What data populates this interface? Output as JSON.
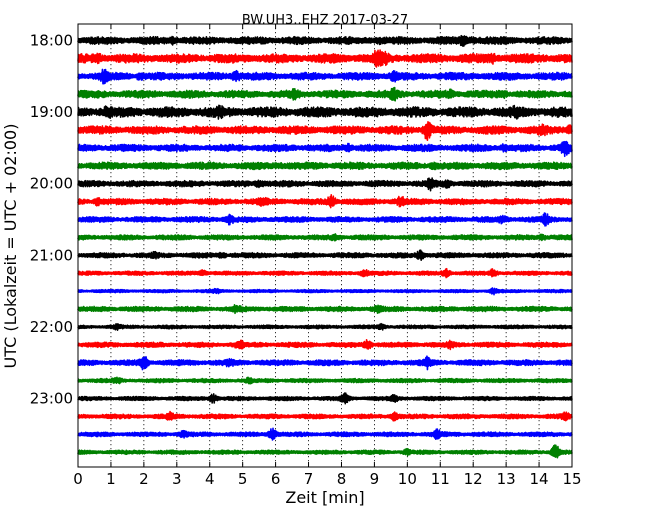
{
  "chart_data": {
    "type": "line",
    "title": "BW.UH3..EHZ 2017-03-27",
    "xlabel": "Zeit  [min]",
    "ylabel": "UTC (Lokalzeit = UTC + 02:00)",
    "xlim": [
      0,
      15
    ],
    "x_ticks": [
      "0",
      "1",
      "2",
      "3",
      "4",
      "5",
      "6",
      "7",
      "8",
      "9",
      "10",
      "11",
      "12",
      "13",
      "14",
      "15"
    ],
    "y_ticks": [
      "18:00",
      "19:00",
      "20:00",
      "21:00",
      "22:00",
      "23:00"
    ],
    "grid": "vertical dotted lines at each minute",
    "colors": [
      "#000000",
      "#ff0000",
      "#0000ff",
      "#008000"
    ],
    "traces": [
      {
        "hour": "18:00",
        "minute": 0,
        "color": "#000000",
        "amplitude": 0.75,
        "events": [
          [
            2.9,
            0.4
          ],
          [
            9.1,
            0.3
          ],
          [
            11.7,
            0.5
          ],
          [
            12.0,
            0.4
          ]
        ]
      },
      {
        "hour": "18:00",
        "minute": 15,
        "color": "#ff0000",
        "amplitude": 0.9,
        "events": [
          [
            9.1,
            1.3
          ],
          [
            9.3,
            0.6
          ],
          [
            0.6,
            0.4
          ],
          [
            12.6,
            0.4
          ]
        ]
      },
      {
        "hour": "18:00",
        "minute": 30,
        "color": "#0000ff",
        "amplitude": 0.75,
        "events": [
          [
            0.8,
            1.0
          ],
          [
            4.8,
            0.8
          ],
          [
            9.6,
            0.5
          ],
          [
            1.9,
            0.4
          ]
        ]
      },
      {
        "hour": "18:00",
        "minute": 45,
        "color": "#008000",
        "amplitude": 0.75,
        "events": [
          [
            6.6,
            0.6
          ],
          [
            9.6,
            0.7
          ],
          [
            11.3,
            0.4
          ],
          [
            12.9,
            0.4
          ]
        ]
      },
      {
        "hour": "19:00",
        "minute": 0,
        "color": "#000000",
        "amplitude": 1.0,
        "events": [
          [
            0.9,
            0.5
          ],
          [
            4.3,
            0.4
          ],
          [
            13.3,
            0.4
          ]
        ]
      },
      {
        "hour": "19:00",
        "minute": 15,
        "color": "#ff0000",
        "amplitude": 0.8,
        "events": [
          [
            10.6,
            1.4
          ],
          [
            14.1,
            0.5
          ],
          [
            14.9,
            0.6
          ]
        ]
      },
      {
        "hour": "19:00",
        "minute": 30,
        "color": "#0000ff",
        "amplitude": 0.7,
        "events": [
          [
            8.2,
            0.5
          ],
          [
            14.8,
            1.2
          ],
          [
            12.9,
            0.3
          ]
        ]
      },
      {
        "hour": "19:00",
        "minute": 45,
        "color": "#008000",
        "amplitude": 0.7,
        "events": [
          [
            6.1,
            0.3
          ],
          [
            10.8,
            0.3
          ]
        ]
      },
      {
        "hour": "20:00",
        "minute": 0,
        "color": "#000000",
        "amplitude": 0.6,
        "events": [
          [
            5.5,
            0.6
          ],
          [
            10.7,
            0.9
          ],
          [
            11.2,
            0.4
          ]
        ]
      },
      {
        "hour": "20:00",
        "minute": 15,
        "color": "#ff0000",
        "amplitude": 0.6,
        "events": [
          [
            7.7,
            1.0
          ],
          [
            9.8,
            0.6
          ],
          [
            0.6,
            0.5
          ],
          [
            5.6,
            0.4
          ]
        ]
      },
      {
        "hour": "20:00",
        "minute": 30,
        "color": "#0000ff",
        "amplitude": 0.55,
        "events": [
          [
            4.6,
            0.6
          ],
          [
            14.2,
            0.8
          ],
          [
            12.9,
            0.4
          ]
        ]
      },
      {
        "hour": "20:00",
        "minute": 45,
        "color": "#008000",
        "amplitude": 0.5,
        "events": [
          [
            7.8,
            0.3
          ],
          [
            14.1,
            0.4
          ]
        ]
      },
      {
        "hour": "21:00",
        "minute": 0,
        "color": "#000000",
        "amplitude": 0.5,
        "events": [
          [
            10.4,
            0.7
          ],
          [
            2.3,
            0.3
          ],
          [
            4.4,
            0.3
          ]
        ]
      },
      {
        "hour": "21:00",
        "minute": 15,
        "color": "#ff0000",
        "amplitude": 0.4,
        "events": [
          [
            11.2,
            0.7
          ],
          [
            12.6,
            0.6
          ],
          [
            3.8,
            0.4
          ],
          [
            8.7,
            0.5
          ]
        ]
      },
      {
        "hour": "21:00",
        "minute": 30,
        "color": "#0000ff",
        "amplitude": 0.3,
        "events": [
          [
            12.6,
            0.5
          ],
          [
            4.2,
            0.3
          ]
        ]
      },
      {
        "hour": "21:00",
        "minute": 45,
        "color": "#008000",
        "amplitude": 0.5,
        "events": [
          [
            4.8,
            0.4
          ],
          [
            9.1,
            0.4
          ]
        ]
      },
      {
        "hour": "22:00",
        "minute": 0,
        "color": "#000000",
        "amplitude": 0.35,
        "events": [
          [
            9.2,
            0.4
          ],
          [
            1.2,
            0.3
          ]
        ]
      },
      {
        "hour": "22:00",
        "minute": 15,
        "color": "#ff0000",
        "amplitude": 0.5,
        "events": [
          [
            8.8,
            0.7
          ],
          [
            4.9,
            0.6
          ],
          [
            11.3,
            0.4
          ]
        ]
      },
      {
        "hour": "22:00",
        "minute": 30,
        "color": "#0000ff",
        "amplitude": 0.55,
        "events": [
          [
            2.0,
            1.1
          ],
          [
            10.6,
            0.8
          ],
          [
            4.6,
            0.4
          ]
        ]
      },
      {
        "hour": "22:00",
        "minute": 45,
        "color": "#008000",
        "amplitude": 0.4,
        "events": [
          [
            1.2,
            0.3
          ],
          [
            5.2,
            0.3
          ]
        ]
      },
      {
        "hour": "23:00",
        "minute": 0,
        "color": "#000000",
        "amplitude": 0.4,
        "events": [
          [
            4.1,
            0.7
          ],
          [
            8.1,
            0.8
          ],
          [
            9.6,
            0.4
          ]
        ]
      },
      {
        "hour": "23:00",
        "minute": 15,
        "color": "#ff0000",
        "amplitude": 0.45,
        "events": [
          [
            9.6,
            0.6
          ],
          [
            2.8,
            0.5
          ],
          [
            14.8,
            0.5
          ]
        ]
      },
      {
        "hour": "23:00",
        "minute": 30,
        "color": "#0000ff",
        "amplitude": 0.45,
        "events": [
          [
            5.9,
            1.0
          ],
          [
            10.9,
            0.7
          ],
          [
            3.2,
            0.4
          ]
        ]
      },
      {
        "hour": "23:00",
        "minute": 45,
        "color": "#008000",
        "amplitude": 0.4,
        "events": [
          [
            14.5,
            1.3
          ],
          [
            10.0,
            0.4
          ]
        ]
      }
    ]
  }
}
